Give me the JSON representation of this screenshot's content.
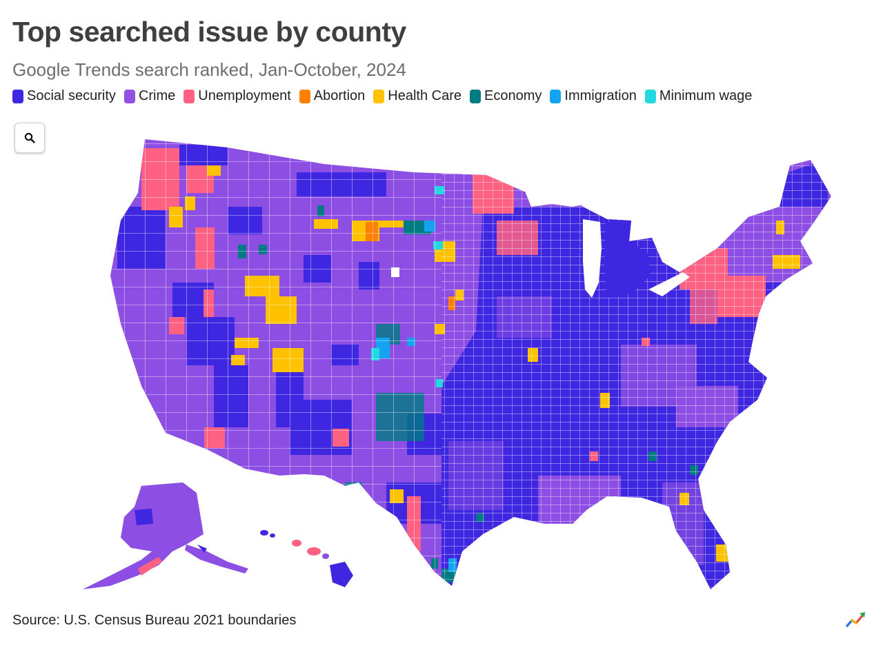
{
  "header": {
    "title": "Top searched issue by county",
    "subtitle": "Google Trends search ranked, Jan-October, 2024"
  },
  "legend": [
    {
      "label": "Social security",
      "color": "#3f27e1"
    },
    {
      "label": "Crime",
      "color": "#9351e3"
    },
    {
      "label": "Unemployment",
      "color": "#ff6183"
    },
    {
      "label": "Abortion",
      "color": "#ff7f00"
    },
    {
      "label": "Health Care",
      "color": "#ffc200"
    },
    {
      "label": "Economy",
      "color": "#007b83"
    },
    {
      "label": "Immigration",
      "color": "#14a3f0"
    },
    {
      "label": "Minimum wage",
      "color": "#22d9e0"
    }
  ],
  "toolbar": {
    "search_icon": "search-icon"
  },
  "footer": {
    "source": "Source: U.S. Census Bureau 2021 boundaries",
    "logo_icon": "trend-arrow-logo-icon"
  }
}
